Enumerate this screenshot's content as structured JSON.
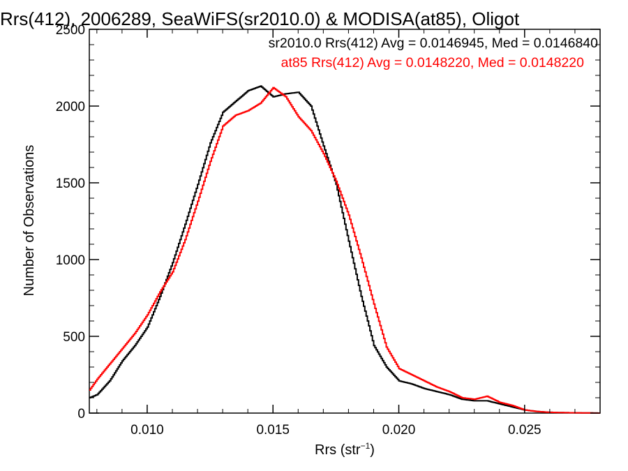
{
  "chart_data": {
    "type": "line",
    "title": "Rrs(412), 2006289, SeaWiFS(sr2010.0) & MODISA(at85), Oligot",
    "xlabel_main": "Rrs (str",
    "xlabel_exp": "−1",
    "xlabel_close": ")",
    "ylabel": "Number of Observations",
    "xlim": [
      0.0077,
      0.028
    ],
    "ylim": [
      0,
      2500
    ],
    "x_ticks": [
      "0.010",
      "0.015",
      "0.020",
      "0.025"
    ],
    "x_tick_values": [
      0.01,
      0.015,
      0.02,
      0.025
    ],
    "y_ticks": [
      "0",
      "500",
      "1000",
      "1500",
      "2000",
      "2500"
    ],
    "y_tick_values": [
      0,
      500,
      1000,
      1500,
      2000,
      2500
    ],
    "grid": false,
    "legend_position": "top-right",
    "series": [
      {
        "name": "sr2010.0",
        "legend_text": "sr2010.0 Rrs(412) Avg = 0.0146945, Med = 0.0146840",
        "color": "#000000",
        "x": [
          0.0077,
          0.008,
          0.0085,
          0.009,
          0.0095,
          0.01,
          0.0105,
          0.011,
          0.0115,
          0.012,
          0.0125,
          0.013,
          0.0135,
          0.014,
          0.0145,
          0.015,
          0.0155,
          0.016,
          0.0165,
          0.017,
          0.0175,
          0.018,
          0.0185,
          0.019,
          0.0195,
          0.02,
          0.0205,
          0.021,
          0.0215,
          0.022,
          0.0225,
          0.023,
          0.0235,
          0.024,
          0.0245,
          0.025,
          0.0255,
          0.026,
          0.0265,
          0.027,
          0.0275,
          0.028
        ],
        "y": [
          100,
          120,
          210,
          340,
          440,
          560,
          760,
          980,
          1230,
          1490,
          1760,
          1960,
          2030,
          2100,
          2130,
          2060,
          2080,
          2090,
          2000,
          1740,
          1490,
          1120,
          760,
          440,
          300,
          210,
          190,
          160,
          140,
          120,
          90,
          80,
          80,
          60,
          40,
          20,
          10,
          5,
          3,
          2,
          1,
          0
        ]
      },
      {
        "name": "at85",
        "legend_text": "at85 Rrs(412) Avg = 0.0148220, Med = 0.0148220",
        "color": "#ff0000",
        "x": [
          0.0077,
          0.008,
          0.0085,
          0.009,
          0.0095,
          0.01,
          0.0105,
          0.011,
          0.0115,
          0.012,
          0.0125,
          0.013,
          0.0135,
          0.014,
          0.0145,
          0.015,
          0.0155,
          0.016,
          0.0165,
          0.017,
          0.0175,
          0.018,
          0.0185,
          0.019,
          0.0195,
          0.02,
          0.0205,
          0.021,
          0.0215,
          0.022,
          0.0225,
          0.023,
          0.0235,
          0.024,
          0.0245,
          0.025,
          0.0255,
          0.026,
          0.0265,
          0.027,
          0.0275,
          0.028
        ],
        "y": [
          150,
          220,
          320,
          420,
          520,
          640,
          790,
          920,
          1130,
          1380,
          1640,
          1870,
          1940,
          1970,
          2020,
          2120,
          2060,
          1930,
          1840,
          1690,
          1510,
          1290,
          1010,
          710,
          430,
          290,
          250,
          210,
          170,
          140,
          100,
          90,
          110,
          70,
          50,
          20,
          10,
          5,
          3,
          2,
          1,
          0
        ]
      }
    ]
  }
}
